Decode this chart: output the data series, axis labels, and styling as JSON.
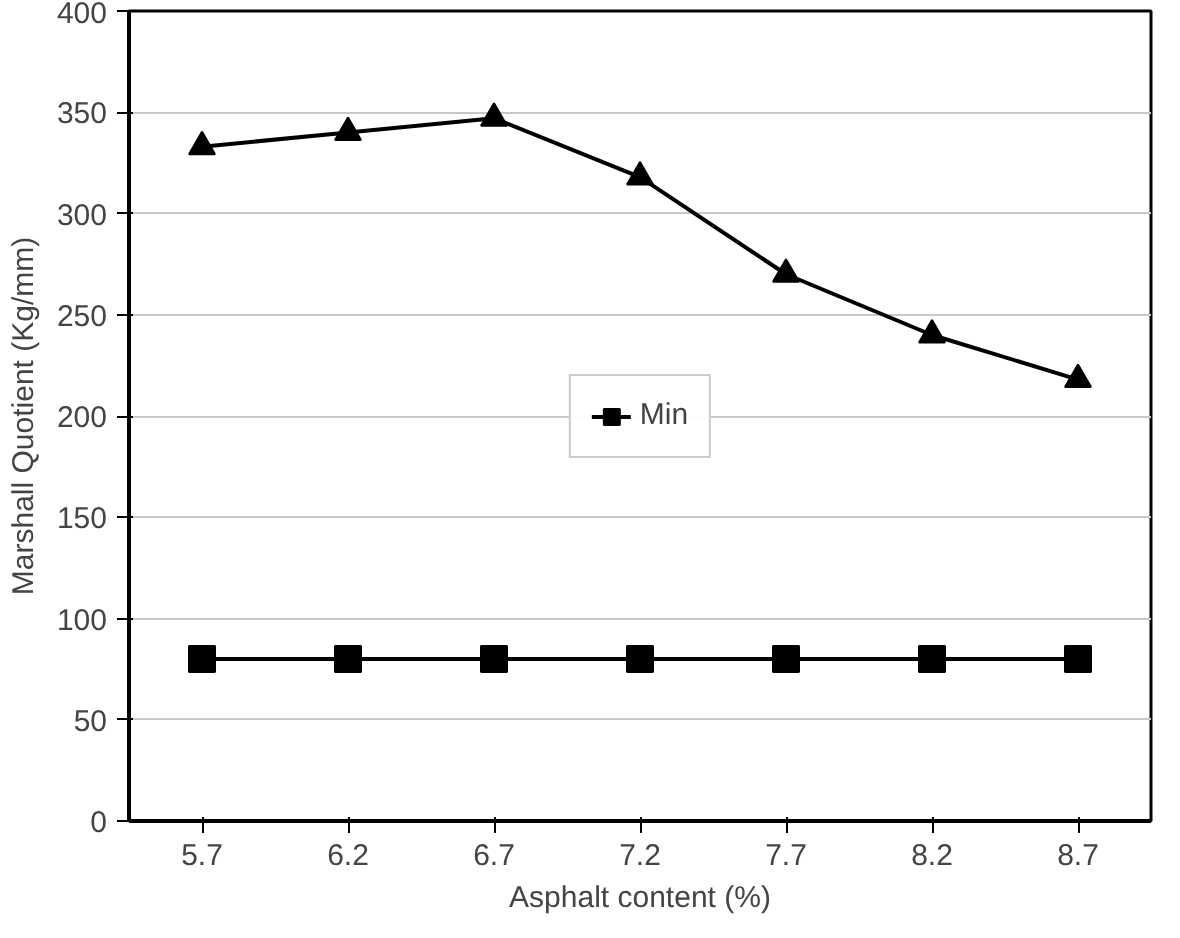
{
  "chart_data": {
    "type": "line",
    "xlabel": "Asphalt content (%)",
    "ylabel": "Marshall Quotient (Kg/mm)",
    "categories": [
      "5.7",
      "6.2",
      "6.7",
      "7.2",
      "7.7",
      "8.2",
      "8.7"
    ],
    "series": [
      {
        "color": "#000000",
        "marker": "triangle",
        "values": [
          333,
          340,
          347,
          318,
          270,
          240,
          218
        ]
      },
      {
        "name": "Min",
        "color": "#000000",
        "marker": "square",
        "values": [
          80,
          80,
          80,
          80,
          80,
          80,
          80
        ]
      }
    ],
    "ylim": [
      0,
      400
    ],
    "yticks": [
      0,
      50,
      100,
      150,
      200,
      250,
      300,
      350,
      400
    ],
    "grid": "y",
    "legend": "center",
    "line_style": "solid"
  }
}
